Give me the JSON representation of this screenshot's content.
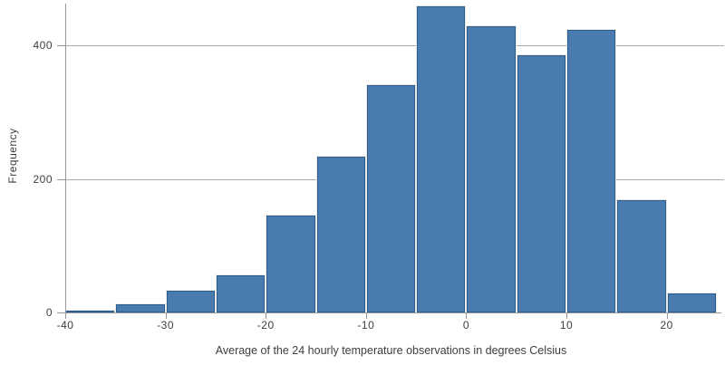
{
  "chart_data": {
    "type": "histogram",
    "title": "",
    "xlabel": "Average of the 24 hourly temperature observations in degrees Celsius",
    "ylabel": "Frequency",
    "bins": [
      {
        "x0": -40,
        "x1": -35,
        "count": 3
      },
      {
        "x0": -35,
        "x1": -30,
        "count": 12
      },
      {
        "x0": -30,
        "x1": -25,
        "count": 33
      },
      {
        "x0": -25,
        "x1": -20,
        "count": 56
      },
      {
        "x0": -20,
        "x1": -15,
        "count": 145
      },
      {
        "x0": -15,
        "x1": -10,
        "count": 233
      },
      {
        "x0": -10,
        "x1": -5,
        "count": 341
      },
      {
        "x0": -5,
        "x1": 0,
        "count": 459
      },
      {
        "x0": 0,
        "x1": 5,
        "count": 429
      },
      {
        "x0": 5,
        "x1": 10,
        "count": 385
      },
      {
        "x0": 10,
        "x1": 15,
        "count": 423
      },
      {
        "x0": 15,
        "x1": 20,
        "count": 168
      },
      {
        "x0": 20,
        "x1": 25,
        "count": 28
      }
    ],
    "x_ticks": [
      -40,
      -30,
      -20,
      -10,
      0,
      10,
      20
    ],
    "y_ticks": [
      0,
      200,
      400
    ],
    "xlim": [
      -40,
      25
    ],
    "ylim": [
      0,
      468
    ],
    "grid": "horizontal-only",
    "legend": "none",
    "colors": {
      "bar_fill": "#4a7bb0",
      "bar_border": "#2a5c8e",
      "bar_outline": "#eceae6",
      "grid_line": "#a9a9a9",
      "axis_line": "#999999",
      "tick_text": "#3d3d3d",
      "background": "#ffffff"
    }
  }
}
